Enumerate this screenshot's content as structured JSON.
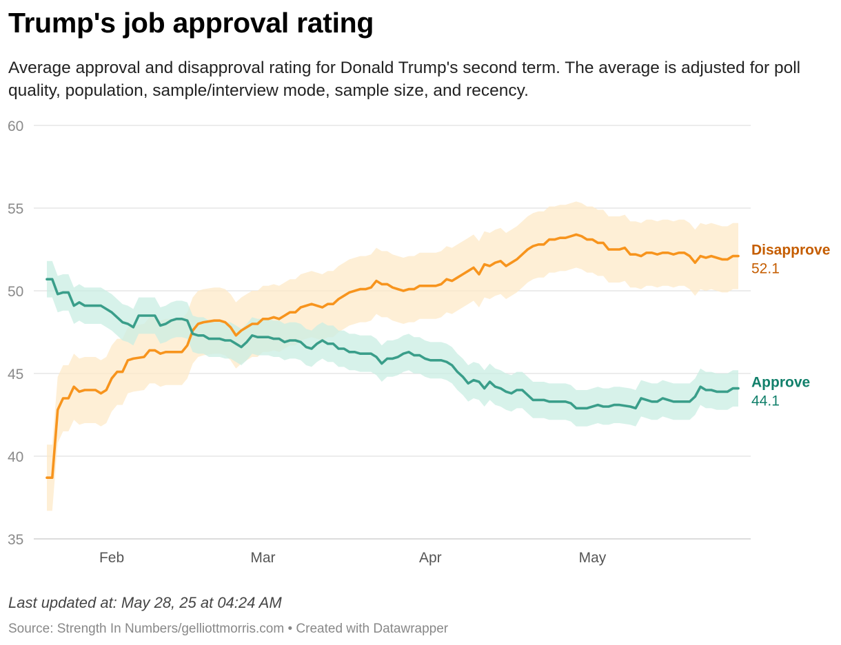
{
  "title": "Trump's job approval rating",
  "subtitle": "Average approval and disapproval rating for Donald Trump's second term. The average is adjusted for poll quality, population, sample/interview mode, sample size, and recency.",
  "footer": {
    "updated": "Last updated at: May 28, 25 at 04:24 AM",
    "source": "Source: Strength In Numbers/gelliottmorris.com • Created with Datawrapper"
  },
  "colors": {
    "disapprove_line": "#f7941d",
    "disapprove_band": "#fde9c8",
    "disapprove_label": "#c55d00",
    "approve_line": "#3a9e8a",
    "approve_band": "#c9eee3",
    "approve_label": "#12806b",
    "grid": "#e0e0e0"
  },
  "chart_data": {
    "type": "line",
    "x_type": "date",
    "x_start": "2025-01-20",
    "x_end": "2025-05-28",
    "ylim": [
      35,
      60
    ],
    "yticks": [
      35,
      40,
      45,
      50,
      55,
      60
    ],
    "xticks": [
      {
        "label": "Feb",
        "date": "2025-02-01"
      },
      {
        "label": "Mar",
        "date": "2025-03-01"
      },
      {
        "label": "Apr",
        "date": "2025-04-01"
      },
      {
        "label": "May",
        "date": "2025-05-01"
      }
    ],
    "legend": "end-labels",
    "series": [
      {
        "name": "Disapprove",
        "end_value": "52.1",
        "band": 2.0,
        "points": [
          [
            "2025-01-20",
            38.7
          ],
          [
            "2025-01-21",
            38.7
          ],
          [
            "2025-01-22",
            42.8
          ],
          [
            "2025-01-23",
            43.5
          ],
          [
            "2025-01-24",
            43.5
          ],
          [
            "2025-01-25",
            44.2
          ],
          [
            "2025-01-26",
            43.9
          ],
          [
            "2025-01-27",
            44.0
          ],
          [
            "2025-01-29",
            44.0
          ],
          [
            "2025-01-30",
            43.8
          ],
          [
            "2025-01-31",
            44.0
          ],
          [
            "2025-02-01",
            44.7
          ],
          [
            "2025-02-02",
            45.1
          ],
          [
            "2025-02-03",
            45.1
          ],
          [
            "2025-02-04",
            45.8
          ],
          [
            "2025-02-05",
            45.9
          ],
          [
            "2025-02-07",
            46.0
          ],
          [
            "2025-02-08",
            46.4
          ],
          [
            "2025-02-09",
            46.4
          ],
          [
            "2025-02-10",
            46.2
          ],
          [
            "2025-02-11",
            46.3
          ],
          [
            "2025-02-13",
            46.3
          ],
          [
            "2025-02-14",
            46.3
          ],
          [
            "2025-02-15",
            46.7
          ],
          [
            "2025-02-16",
            47.6
          ],
          [
            "2025-02-17",
            48.0
          ],
          [
            "2025-02-18",
            48.1
          ],
          [
            "2025-02-20",
            48.2
          ],
          [
            "2025-02-21",
            48.2
          ],
          [
            "2025-02-22",
            48.1
          ],
          [
            "2025-02-23",
            47.8
          ],
          [
            "2025-02-24",
            47.3
          ],
          [
            "2025-02-25",
            47.6
          ],
          [
            "2025-02-26",
            47.8
          ],
          [
            "2025-02-27",
            48.0
          ],
          [
            "2025-02-28",
            48.0
          ],
          [
            "2025-03-01",
            48.3
          ],
          [
            "2025-03-02",
            48.3
          ],
          [
            "2025-03-03",
            48.4
          ],
          [
            "2025-03-04",
            48.3
          ],
          [
            "2025-03-05",
            48.5
          ],
          [
            "2025-03-06",
            48.7
          ],
          [
            "2025-03-07",
            48.7
          ],
          [
            "2025-03-08",
            49.0
          ],
          [
            "2025-03-09",
            49.1
          ],
          [
            "2025-03-10",
            49.2
          ],
          [
            "2025-03-12",
            49.0
          ],
          [
            "2025-03-13",
            49.2
          ],
          [
            "2025-03-14",
            49.2
          ],
          [
            "2025-03-15",
            49.5
          ],
          [
            "2025-03-16",
            49.7
          ],
          [
            "2025-03-17",
            49.9
          ],
          [
            "2025-03-19",
            50.1
          ],
          [
            "2025-03-20",
            50.1
          ],
          [
            "2025-03-21",
            50.2
          ],
          [
            "2025-03-22",
            50.6
          ],
          [
            "2025-03-23",
            50.4
          ],
          [
            "2025-03-24",
            50.4
          ],
          [
            "2025-03-25",
            50.2
          ],
          [
            "2025-03-26",
            50.1
          ],
          [
            "2025-03-27",
            50.0
          ],
          [
            "2025-03-28",
            50.1
          ],
          [
            "2025-03-29",
            50.1
          ],
          [
            "2025-03-30",
            50.3
          ],
          [
            "2025-03-31",
            50.3
          ],
          [
            "2025-04-02",
            50.3
          ],
          [
            "2025-04-03",
            50.4
          ],
          [
            "2025-04-04",
            50.7
          ],
          [
            "2025-04-05",
            50.6
          ],
          [
            "2025-04-06",
            50.8
          ],
          [
            "2025-04-07",
            51.0
          ],
          [
            "2025-04-08",
            51.2
          ],
          [
            "2025-04-09",
            51.4
          ],
          [
            "2025-04-10",
            51.0
          ],
          [
            "2025-04-11",
            51.6
          ],
          [
            "2025-04-12",
            51.5
          ],
          [
            "2025-04-13",
            51.7
          ],
          [
            "2025-04-14",
            51.8
          ],
          [
            "2025-04-15",
            51.5
          ],
          [
            "2025-04-16",
            51.7
          ],
          [
            "2025-04-17",
            51.9
          ],
          [
            "2025-04-18",
            52.2
          ],
          [
            "2025-04-19",
            52.5
          ],
          [
            "2025-04-20",
            52.7
          ],
          [
            "2025-04-21",
            52.8
          ],
          [
            "2025-04-22",
            52.8
          ],
          [
            "2025-04-23",
            53.1
          ],
          [
            "2025-04-24",
            53.1
          ],
          [
            "2025-04-25",
            53.2
          ],
          [
            "2025-04-26",
            53.2
          ],
          [
            "2025-04-27",
            53.3
          ],
          [
            "2025-04-28",
            53.4
          ],
          [
            "2025-04-29",
            53.3
          ],
          [
            "2025-04-30",
            53.1
          ],
          [
            "2025-05-01",
            53.1
          ],
          [
            "2025-05-02",
            52.9
          ],
          [
            "2025-05-03",
            52.9
          ],
          [
            "2025-05-04",
            52.5
          ],
          [
            "2025-05-05",
            52.5
          ],
          [
            "2025-05-06",
            52.5
          ],
          [
            "2025-05-07",
            52.6
          ],
          [
            "2025-05-08",
            52.2
          ],
          [
            "2025-05-09",
            52.2
          ],
          [
            "2025-05-10",
            52.1
          ],
          [
            "2025-05-11",
            52.3
          ],
          [
            "2025-05-12",
            52.3
          ],
          [
            "2025-05-13",
            52.2
          ],
          [
            "2025-05-14",
            52.3
          ],
          [
            "2025-05-15",
            52.3
          ],
          [
            "2025-05-16",
            52.2
          ],
          [
            "2025-05-17",
            52.3
          ],
          [
            "2025-05-18",
            52.3
          ],
          [
            "2025-05-19",
            52.1
          ],
          [
            "2025-05-20",
            51.7
          ],
          [
            "2025-05-21",
            52.1
          ],
          [
            "2025-05-22",
            52.0
          ],
          [
            "2025-05-23",
            52.1
          ],
          [
            "2025-05-24",
            52.0
          ],
          [
            "2025-05-25",
            51.9
          ],
          [
            "2025-05-26",
            51.9
          ],
          [
            "2025-05-27",
            52.1
          ],
          [
            "2025-05-28",
            52.1
          ]
        ]
      },
      {
        "name": "Approve",
        "end_value": "44.1",
        "band": 1.1,
        "points": [
          [
            "2025-01-20",
            50.7
          ],
          [
            "2025-01-21",
            50.7
          ],
          [
            "2025-01-22",
            49.8
          ],
          [
            "2025-01-23",
            49.9
          ],
          [
            "2025-01-24",
            49.9
          ],
          [
            "2025-01-25",
            49.1
          ],
          [
            "2025-01-26",
            49.3
          ],
          [
            "2025-01-27",
            49.1
          ],
          [
            "2025-01-30",
            49.1
          ],
          [
            "2025-01-31",
            48.9
          ],
          [
            "2025-02-01",
            48.7
          ],
          [
            "2025-02-02",
            48.4
          ],
          [
            "2025-02-03",
            48.1
          ],
          [
            "2025-02-04",
            48.0
          ],
          [
            "2025-02-05",
            47.8
          ],
          [
            "2025-02-06",
            48.5
          ],
          [
            "2025-02-09",
            48.5
          ],
          [
            "2025-02-10",
            47.9
          ],
          [
            "2025-02-11",
            48.0
          ],
          [
            "2025-02-12",
            48.2
          ],
          [
            "2025-02-13",
            48.3
          ],
          [
            "2025-02-14",
            48.3
          ],
          [
            "2025-02-15",
            48.2
          ],
          [
            "2025-02-16",
            47.4
          ],
          [
            "2025-02-17",
            47.3
          ],
          [
            "2025-02-18",
            47.3
          ],
          [
            "2025-02-19",
            47.1
          ],
          [
            "2025-02-21",
            47.1
          ],
          [
            "2025-02-22",
            47.0
          ],
          [
            "2025-02-23",
            47.0
          ],
          [
            "2025-02-24",
            46.8
          ],
          [
            "2025-02-25",
            46.6
          ],
          [
            "2025-02-26",
            46.9
          ],
          [
            "2025-02-27",
            47.3
          ],
          [
            "2025-02-28",
            47.2
          ],
          [
            "2025-03-02",
            47.2
          ],
          [
            "2025-03-03",
            47.1
          ],
          [
            "2025-03-04",
            47.1
          ],
          [
            "2025-03-05",
            46.9
          ],
          [
            "2025-03-06",
            47.0
          ],
          [
            "2025-03-07",
            47.0
          ],
          [
            "2025-03-08",
            46.9
          ],
          [
            "2025-03-09",
            46.6
          ],
          [
            "2025-03-10",
            46.5
          ],
          [
            "2025-03-11",
            46.8
          ],
          [
            "2025-03-12",
            47.0
          ],
          [
            "2025-03-13",
            46.8
          ],
          [
            "2025-03-14",
            46.8
          ],
          [
            "2025-03-15",
            46.5
          ],
          [
            "2025-03-16",
            46.5
          ],
          [
            "2025-03-17",
            46.3
          ],
          [
            "2025-03-18",
            46.3
          ],
          [
            "2025-03-19",
            46.2
          ],
          [
            "2025-03-21",
            46.2
          ],
          [
            "2025-03-22",
            46.0
          ],
          [
            "2025-03-23",
            45.6
          ],
          [
            "2025-03-24",
            45.9
          ],
          [
            "2025-03-25",
            45.9
          ],
          [
            "2025-03-26",
            46.0
          ],
          [
            "2025-03-27",
            46.2
          ],
          [
            "2025-03-28",
            46.3
          ],
          [
            "2025-03-29",
            46.1
          ],
          [
            "2025-03-30",
            46.1
          ],
          [
            "2025-03-31",
            45.9
          ],
          [
            "2025-04-01",
            45.8
          ],
          [
            "2025-04-03",
            45.8
          ],
          [
            "2025-04-04",
            45.7
          ],
          [
            "2025-04-05",
            45.5
          ],
          [
            "2025-04-06",
            45.1
          ],
          [
            "2025-04-07",
            44.8
          ],
          [
            "2025-04-08",
            44.4
          ],
          [
            "2025-04-09",
            44.6
          ],
          [
            "2025-04-10",
            44.5
          ],
          [
            "2025-04-11",
            44.1
          ],
          [
            "2025-04-12",
            44.5
          ],
          [
            "2025-04-13",
            44.2
          ],
          [
            "2025-04-14",
            44.1
          ],
          [
            "2025-04-15",
            43.9
          ],
          [
            "2025-04-16",
            43.8
          ],
          [
            "2025-04-17",
            44.0
          ],
          [
            "2025-04-18",
            44.0
          ],
          [
            "2025-04-19",
            43.7
          ],
          [
            "2025-04-20",
            43.4
          ],
          [
            "2025-04-22",
            43.4
          ],
          [
            "2025-04-23",
            43.3
          ],
          [
            "2025-04-26",
            43.3
          ],
          [
            "2025-04-27",
            43.2
          ],
          [
            "2025-04-28",
            42.9
          ],
          [
            "2025-04-29",
            42.9
          ],
          [
            "2025-04-30",
            42.9
          ],
          [
            "2025-05-01",
            43.0
          ],
          [
            "2025-05-02",
            43.1
          ],
          [
            "2025-05-03",
            43.0
          ],
          [
            "2025-05-04",
            43.0
          ],
          [
            "2025-05-05",
            43.1
          ],
          [
            "2025-05-06",
            43.1
          ],
          [
            "2025-05-08",
            43.0
          ],
          [
            "2025-05-09",
            42.9
          ],
          [
            "2025-05-10",
            43.5
          ],
          [
            "2025-05-11",
            43.4
          ],
          [
            "2025-05-12",
            43.3
          ],
          [
            "2025-05-13",
            43.3
          ],
          [
            "2025-05-14",
            43.5
          ],
          [
            "2025-05-15",
            43.4
          ],
          [
            "2025-05-16",
            43.3
          ],
          [
            "2025-05-18",
            43.3
          ],
          [
            "2025-05-19",
            43.3
          ],
          [
            "2025-05-20",
            43.6
          ],
          [
            "2025-05-21",
            44.2
          ],
          [
            "2025-05-22",
            44.0
          ],
          [
            "2025-05-23",
            44.0
          ],
          [
            "2025-05-24",
            43.9
          ],
          [
            "2025-05-25",
            43.9
          ],
          [
            "2025-05-26",
            43.9
          ],
          [
            "2025-05-27",
            44.1
          ],
          [
            "2025-05-28",
            44.1
          ]
        ]
      }
    ]
  }
}
